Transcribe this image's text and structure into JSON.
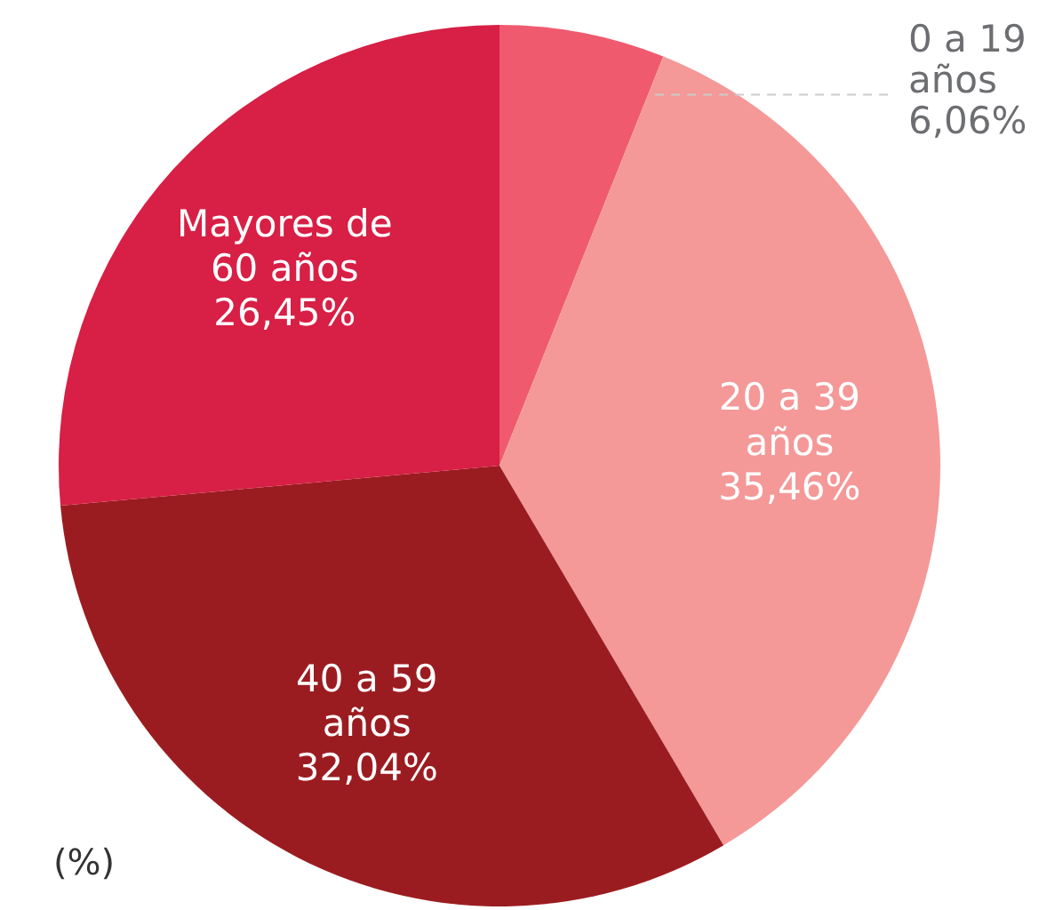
{
  "chart_data": {
    "type": "pie",
    "categories": [
      "0 a 19 años",
      "20 a 39 años",
      "40 a 59 años",
      "Mayores de 60 años"
    ],
    "values": [
      6.06,
      35.46,
      32.04,
      26.45
    ],
    "value_labels": [
      "6,06%",
      "35,46%",
      "32,04%",
      "26,45%"
    ],
    "colors": [
      "#f05a6e",
      "#f49898",
      "#9b1c20",
      "#d81f45"
    ],
    "annotations": [
      "(%)"
    ]
  }
}
